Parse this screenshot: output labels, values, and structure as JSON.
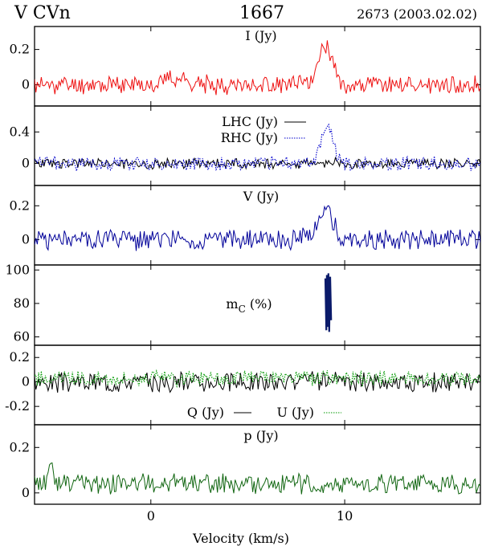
{
  "header": {
    "left": "V CVn",
    "center": "1667",
    "right": "2673 (2003.02.02)"
  },
  "xlabel": "Velocity (km/s)",
  "x_ticks": [
    "0",
    "10"
  ],
  "chart_data": [
    {
      "type": "line",
      "panel": "I",
      "label": "I (Jy)",
      "xlim": [
        -6,
        17
      ],
      "ylim": [
        -0.12,
        0.33
      ],
      "yticks": [
        0,
        0.2
      ],
      "ytick_labels": [
        "0",
        "0.2"
      ],
      "series": [
        {
          "name": "I (Jy)",
          "color": "#ee1111",
          "style": "solid",
          "noise": 0.045,
          "seed": 11,
          "features": [
            {
              "center": 9.0,
              "width": 0.35,
              "amp": 0.23
            },
            {
              "center": 1.2,
              "width": 0.6,
              "amp": 0.04
            }
          ]
        }
      ]
    },
    {
      "type": "line",
      "panel": "LHC/RHC",
      "xlim": [
        -6,
        17
      ],
      "ylim": [
        -0.28,
        0.73
      ],
      "yticks": [
        0,
        0.4
      ],
      "ytick_labels": [
        "0",
        "0.4"
      ],
      "legend": [
        {
          "label": "LHC (Jy)",
          "color": "#000000",
          "style": "solid"
        },
        {
          "label": "RHC (Jy)",
          "color": "#0000cc",
          "style": "dotted"
        }
      ],
      "series": [
        {
          "name": "LHC (Jy)",
          "color": "#000000",
          "style": "solid",
          "noise": 0.06,
          "seed": 23,
          "features": [
            {
              "center": 9.0,
              "width": 0.4,
              "amp": 0.02
            }
          ]
        },
        {
          "name": "RHC (Jy)",
          "color": "#0000cc",
          "style": "dotted",
          "noise": 0.08,
          "seed": 37,
          "features": [
            {
              "center": 9.1,
              "width": 0.3,
              "amp": 0.48
            }
          ]
        }
      ]
    },
    {
      "type": "line",
      "panel": "V",
      "label": "V (Jy)",
      "xlim": [
        -6,
        17
      ],
      "ylim": [
        -0.15,
        0.32
      ],
      "yticks": [
        0,
        0.2
      ],
      "ytick_labels": [
        "0",
        "0.2"
      ],
      "series": [
        {
          "name": "V (Jy)",
          "color": "#000099",
          "style": "solid",
          "noise": 0.055,
          "seed": 51,
          "features": [
            {
              "center": 9.0,
              "width": 0.35,
              "amp": 0.2
            }
          ]
        }
      ]
    },
    {
      "type": "line",
      "panel": "mC",
      "label": "m",
      "label_sub": "C",
      "label_suffix": " (%)",
      "xlim": [
        -6,
        17
      ],
      "ylim": [
        55,
        103
      ],
      "yticks": [
        60,
        80,
        100
      ],
      "ytick_labels": [
        "60",
        "80",
        "100"
      ],
      "series": [
        {
          "name": "mC",
          "color": "#0a1a6a",
          "style": "solid",
          "points": [
            [
              9.0,
              95
            ],
            [
              9.05,
              64
            ],
            [
              9.08,
              97
            ],
            [
              9.12,
              66
            ],
            [
              9.16,
              98
            ],
            [
              9.2,
              63
            ],
            [
              9.25,
              96
            ],
            [
              9.3,
              70
            ]
          ]
        }
      ]
    },
    {
      "type": "line",
      "panel": "Q/U",
      "xlim": [
        -6,
        17
      ],
      "ylim": [
        -0.35,
        0.3
      ],
      "yticks": [
        -0.2,
        0,
        0.2
      ],
      "ytick_labels": [
        "-0.2",
        "0",
        "0.2"
      ],
      "legend": [
        {
          "label": "Q (Jy)",
          "color": "#000000",
          "style": "solid"
        },
        {
          "label": "U (Jy)",
          "color": "#009900",
          "style": "dotted"
        }
      ],
      "series": [
        {
          "name": "Q (Jy)",
          "color": "#000000",
          "style": "solid",
          "noise": 0.07,
          "seed": 67,
          "features": []
        },
        {
          "name": "U (Jy)",
          "color": "#009900",
          "style": "dotted",
          "noise": 0.055,
          "seed": 79,
          "offset": 0.03,
          "features": []
        }
      ]
    },
    {
      "type": "line",
      "panel": "p",
      "label": "p (Jy)",
      "xlim": [
        -6,
        17
      ],
      "ylim": [
        -0.05,
        0.3
      ],
      "yticks": [
        0,
        0.2
      ],
      "ytick_labels": [
        "0",
        "0.2"
      ],
      "series": [
        {
          "name": "p (Jy)",
          "color": "#116611",
          "style": "solid",
          "noise": 0.04,
          "seed": 91,
          "offset": 0.04,
          "features": [
            {
              "center": -5.2,
              "width": 0.12,
              "amp": 0.1
            }
          ]
        }
      ]
    }
  ]
}
